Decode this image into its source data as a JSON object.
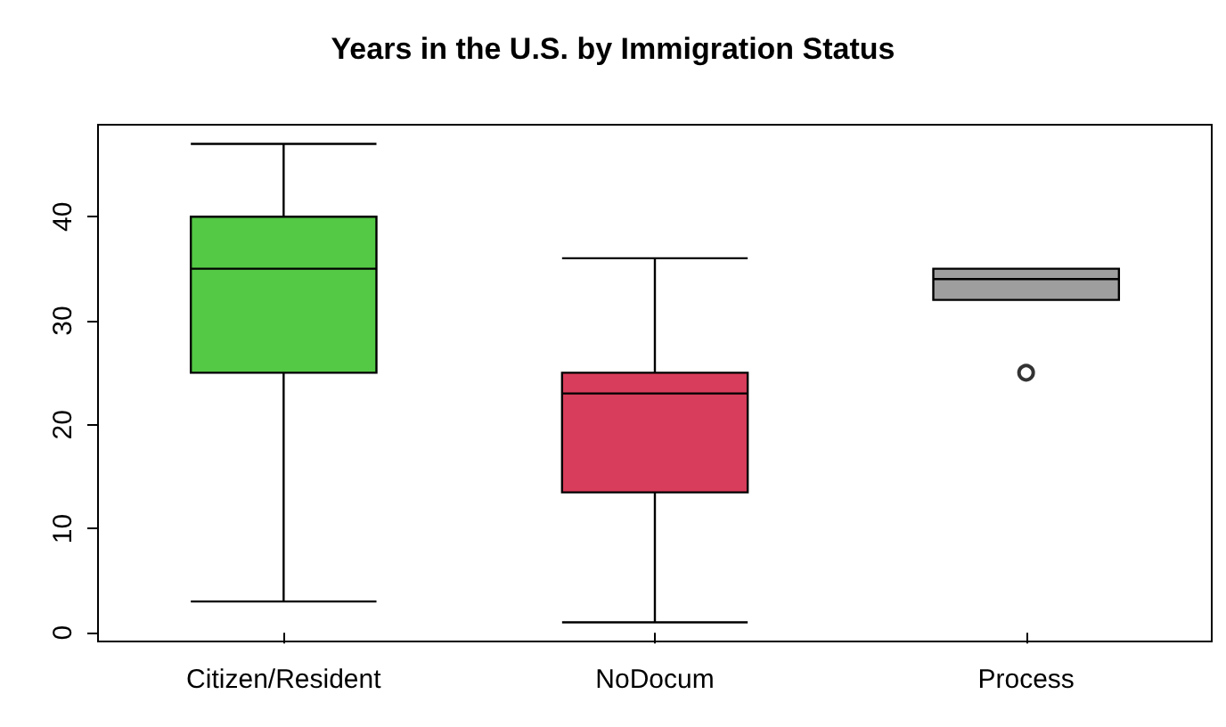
{
  "chart_data": {
    "type": "box",
    "title": "Years in the U.S. by Immigration Status",
    "categories": [
      "Citizen/Resident",
      "NoDocum",
      "Process"
    ],
    "boxes": [
      {
        "low": 3,
        "q1": 25,
        "median": 35,
        "q3": 40,
        "high": 47
      },
      {
        "low": 1,
        "q1": 13.5,
        "median": 23,
        "q3": 25,
        "high": 36
      },
      {
        "low": 32,
        "q1": 32,
        "median": 34,
        "q3": 35,
        "high": 35,
        "outliers": [
          25
        ]
      }
    ],
    "colors": [
      "#54c945",
      "#d83d5b",
      "#9e9e9e"
    ],
    "ylim": [
      -0.84,
      48.84
    ],
    "yticks": [
      0,
      10,
      20,
      30,
      40
    ]
  }
}
